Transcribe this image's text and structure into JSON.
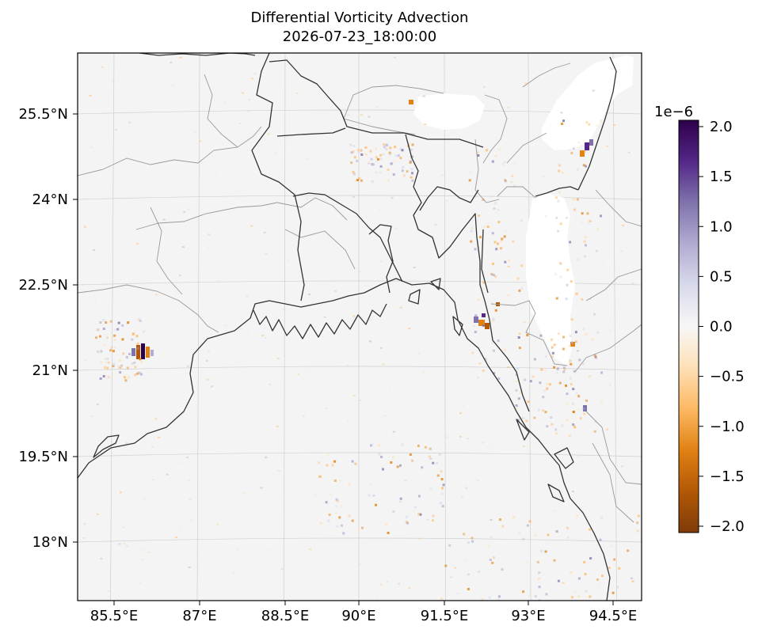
{
  "figure": {
    "title": "Differential Vorticity Advection",
    "subtitle": "2026-07-23_18:00:00"
  },
  "map": {
    "lon_ticks": [
      "85.5°E",
      "87°E",
      "88.5°E",
      "90°E",
      "91.5°E",
      "93°E",
      "94.5°E"
    ],
    "lat_ticks": [
      "25.5°N",
      "24°N",
      "22.5°N",
      "21°N",
      "19.5°N",
      "18°N"
    ],
    "gridlines": true,
    "field_background": "#f4f4f4",
    "coastline_color": "#333333",
    "border_color": "#999999"
  },
  "colorbar": {
    "exponent_label": "1e−6",
    "ticks": [
      "2.0",
      "1.5",
      "1.0",
      "0.5",
      "0.0",
      "−0.5",
      "−1.0",
      "−1.5",
      "−2.0"
    ],
    "range": [
      -2.0,
      2.0
    ],
    "colormap": "PuOr",
    "colors": [
      "#7f3b08",
      "#b35806",
      "#e08214",
      "#fdb863",
      "#fee0b6",
      "#f7f7f7",
      "#d8daeb",
      "#b2abd2",
      "#8073ac",
      "#542788",
      "#2d004b"
    ]
  }
}
